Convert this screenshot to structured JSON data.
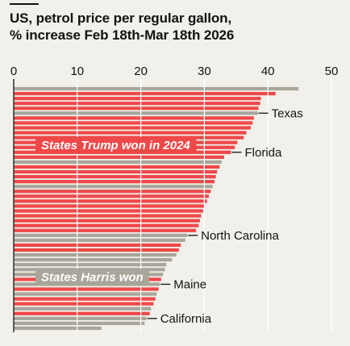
{
  "title_line1": "US, petrol price per regular gallon,",
  "title_line2": "% increase Feb 18th-Mar 18th 2026",
  "colors": {
    "trump": "#ef4849",
    "harris": "#a8a59a",
    "grid": "#ffffff",
    "text": "#121212",
    "background": "#f1f0ea"
  },
  "chart_data": {
    "type": "bar",
    "orientation": "horizontal",
    "xlim": [
      0,
      50
    ],
    "xticks": [
      0,
      10,
      20,
      30,
      40,
      50
    ],
    "grid": true,
    "bars": [
      {
        "value": 44.8,
        "group": "harris"
      },
      {
        "value": 41.2,
        "group": "trump"
      },
      {
        "value": 38.9,
        "group": "trump"
      },
      {
        "value": 38.8,
        "group": "trump"
      },
      {
        "value": 38.5,
        "group": "trump"
      },
      {
        "value": 38.4,
        "group": "harris"
      },
      {
        "value": 37.8,
        "group": "trump"
      },
      {
        "value": 37.6,
        "group": "trump"
      },
      {
        "value": 37.3,
        "group": "trump"
      },
      {
        "value": 36.6,
        "group": "trump"
      },
      {
        "value": 36.2,
        "group": "trump"
      },
      {
        "value": 35.2,
        "group": "trump"
      },
      {
        "value": 34.8,
        "group": "trump"
      },
      {
        "value": 34.2,
        "group": "trump"
      },
      {
        "value": 33.1,
        "group": "trump"
      },
      {
        "value": 32.7,
        "group": "harris"
      },
      {
        "value": 32.4,
        "group": "trump"
      },
      {
        "value": 32.0,
        "group": "trump"
      },
      {
        "value": 31.8,
        "group": "trump"
      },
      {
        "value": 31.6,
        "group": "trump"
      },
      {
        "value": 31.3,
        "group": "harris"
      },
      {
        "value": 31.0,
        "group": "trump"
      },
      {
        "value": 30.7,
        "group": "trump"
      },
      {
        "value": 30.4,
        "group": "trump"
      },
      {
        "value": 30.0,
        "group": "trump"
      },
      {
        "value": 29.8,
        "group": "trump"
      },
      {
        "value": 29.5,
        "group": "trump"
      },
      {
        "value": 29.3,
        "group": "trump"
      },
      {
        "value": 29.1,
        "group": "trump"
      },
      {
        "value": 28.7,
        "group": "trump"
      },
      {
        "value": 27.3,
        "group": "harris"
      },
      {
        "value": 27.0,
        "group": "harris"
      },
      {
        "value": 26.3,
        "group": "trump"
      },
      {
        "value": 26.0,
        "group": "trump"
      },
      {
        "value": 25.6,
        "group": "harris"
      },
      {
        "value": 24.9,
        "group": "harris"
      },
      {
        "value": 24.0,
        "group": "harris"
      },
      {
        "value": 23.8,
        "group": "harris"
      },
      {
        "value": 23.5,
        "group": "harris"
      },
      {
        "value": 23.2,
        "group": "trump"
      },
      {
        "value": 23.0,
        "group": "harris"
      },
      {
        "value": 22.8,
        "group": "trump"
      },
      {
        "value": 22.5,
        "group": "harris"
      },
      {
        "value": 22.3,
        "group": "trump"
      },
      {
        "value": 22.0,
        "group": "trump"
      },
      {
        "value": 21.6,
        "group": "harris"
      },
      {
        "value": 21.4,
        "group": "trump"
      },
      {
        "value": 20.9,
        "group": "harris"
      },
      {
        "value": 20.6,
        "group": "harris"
      },
      {
        "value": 13.8,
        "group": "harris"
      }
    ],
    "annotations": [
      {
        "text": "Texas",
        "bar": 5
      },
      {
        "text": "Florida",
        "bar": 13
      },
      {
        "text": "North Carolina",
        "bar": 30
      },
      {
        "text": "Maine",
        "bar": 40
      },
      {
        "text": "California",
        "bar": 47
      }
    ],
    "group_labels": [
      {
        "text": "States Trump won in 2024",
        "group": "trump",
        "bar": 12
      },
      {
        "text": "States Harris won",
        "group": "harris",
        "bar": 39
      }
    ]
  }
}
